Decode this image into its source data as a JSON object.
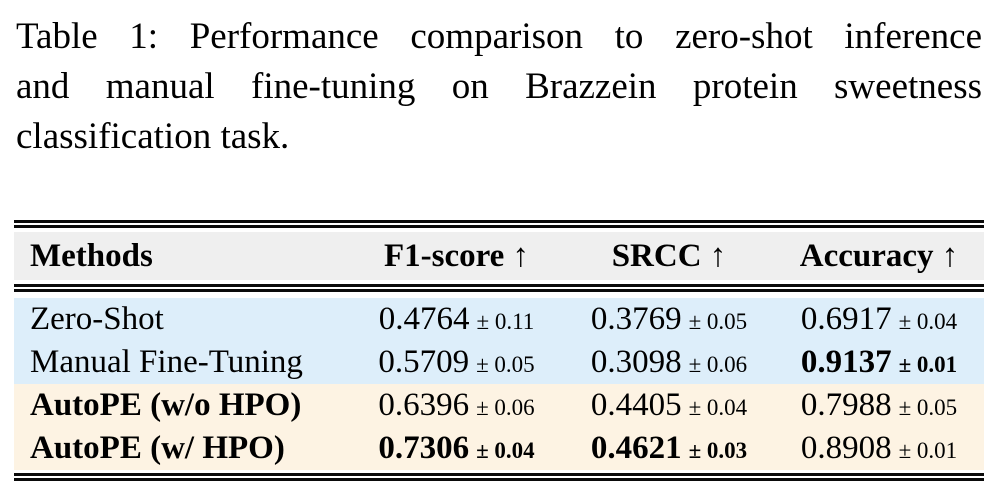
{
  "caption": {
    "full": "Table 1: Performance comparison to zero-shot inference and manual fine-tuning on Brazzein protein sweetness classification task.",
    "lines": [
      "Table 1: Performance comparison to zero-shot inference",
      "and manual fine-tuning on Brazzein protein sweetness",
      "classification task."
    ]
  },
  "table": {
    "headers": [
      "Methods",
      "F1-score ↑",
      "SRCC ↑",
      "Accuracy ↑"
    ],
    "rows": [
      {
        "method": "Zero-Shot",
        "method_bold": false,
        "f1": {
          "v": "0.4764",
          "e": "± 0.11",
          "bold": false
        },
        "srcc": {
          "v": "0.3769",
          "e": "± 0.05",
          "bold": false
        },
        "acc": {
          "v": "0.6917",
          "e": "± 0.04",
          "bold": false
        }
      },
      {
        "method": "Manual Fine-Tuning",
        "method_bold": false,
        "f1": {
          "v": "0.5709",
          "e": "± 0.05",
          "bold": false
        },
        "srcc": {
          "v": "0.3098",
          "e": "± 0.06",
          "bold": false
        },
        "acc": {
          "v": "0.9137",
          "e": "± 0.01",
          "bold": true
        }
      },
      {
        "method": "AutoPE (w/o HPO)",
        "method_bold": true,
        "f1": {
          "v": "0.6396",
          "e": "± 0.06",
          "bold": false
        },
        "srcc": {
          "v": "0.4405",
          "e": "± 0.04",
          "bold": false
        },
        "acc": {
          "v": "0.7988",
          "e": "± 0.05",
          "bold": false
        }
      },
      {
        "method": "AutoPE (w/ HPO)",
        "method_bold": true,
        "f1": {
          "v": "0.7306",
          "e": "± 0.04",
          "bold": true
        },
        "srcc": {
          "v": "0.4621",
          "e": "± 0.03",
          "bold": true
        },
        "acc": {
          "v": "0.8908",
          "e": "± 0.01",
          "bold": false
        }
      }
    ]
  },
  "colors": {
    "row_blue": "#ddeefa",
    "row_cream": "#fdf3e3",
    "header_gray": "#efefef",
    "rule_black": "#0a0a0a",
    "background": "#ffffff"
  }
}
